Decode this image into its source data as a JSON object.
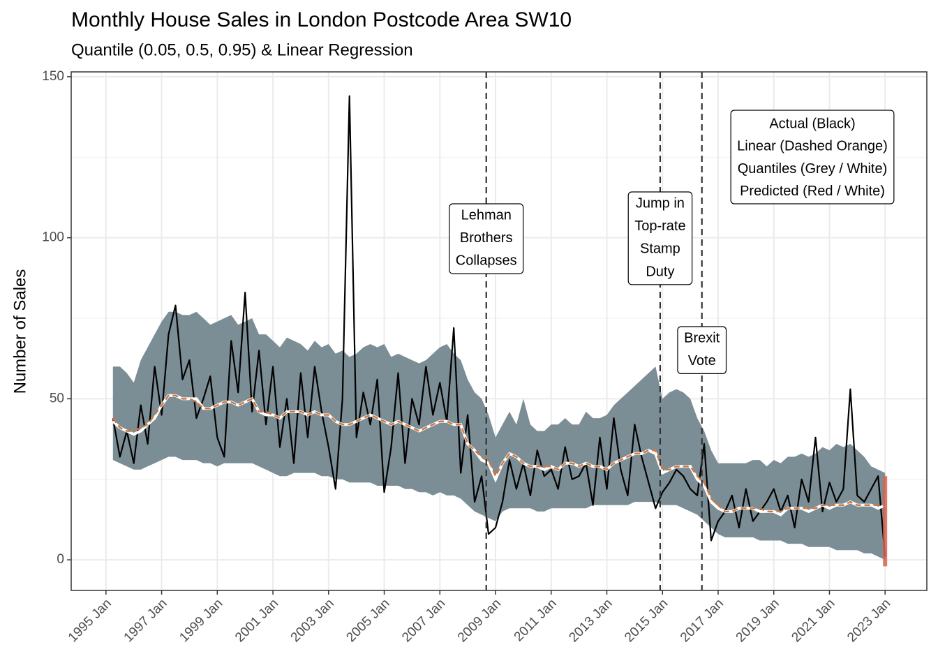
{
  "chart_data": {
    "type": "line",
    "title": "Monthly House Sales in London Postcode Area SW10",
    "subtitle": "Quantile (0.05, 0.5, 0.95) & Linear Regression",
    "y_label": "Number of Sales",
    "x": [
      "1995-04",
      "1995-07",
      "1995-10",
      "1996-01",
      "1996-04",
      "1996-07",
      "1996-10",
      "1997-01",
      "1997-04",
      "1997-07",
      "1997-10",
      "1998-01",
      "1998-04",
      "1998-07",
      "1998-10",
      "1999-01",
      "1999-04",
      "1999-07",
      "1999-10",
      "2000-01",
      "2000-04",
      "2000-07",
      "2000-10",
      "2001-01",
      "2001-04",
      "2001-07",
      "2001-10",
      "2002-01",
      "2002-04",
      "2002-07",
      "2002-10",
      "2003-01",
      "2003-04",
      "2003-07",
      "2003-10",
      "2004-01",
      "2004-04",
      "2004-07",
      "2004-10",
      "2005-01",
      "2005-04",
      "2005-07",
      "2005-10",
      "2006-01",
      "2006-04",
      "2006-07",
      "2006-10",
      "2007-01",
      "2007-04",
      "2007-07",
      "2007-10",
      "2008-01",
      "2008-04",
      "2008-07",
      "2008-10",
      "2009-01",
      "2009-04",
      "2009-07",
      "2009-10",
      "2010-01",
      "2010-04",
      "2010-07",
      "2010-10",
      "2011-01",
      "2011-04",
      "2011-07",
      "2011-10",
      "2012-01",
      "2012-04",
      "2012-07",
      "2012-10",
      "2013-01",
      "2013-04",
      "2013-07",
      "2013-10",
      "2014-01",
      "2014-04",
      "2014-07",
      "2014-10",
      "2015-01",
      "2015-04",
      "2015-07",
      "2015-10",
      "2016-01",
      "2016-04",
      "2016-07",
      "2016-10",
      "2017-01",
      "2017-04",
      "2017-07",
      "2017-10",
      "2018-01",
      "2018-04",
      "2018-07",
      "2018-10",
      "2019-01",
      "2019-04",
      "2019-07",
      "2019-10",
      "2020-01",
      "2020-04",
      "2020-07",
      "2020-10",
      "2021-01",
      "2021-04",
      "2021-07",
      "2021-10",
      "2022-01",
      "2022-04",
      "2022-07",
      "2022-10",
      "2023-01"
    ],
    "quantiles": {
      "name": "Quantiles (Grey / White)",
      "color": "#7b8d95",
      "median_color": "#ffffff",
      "upper": [
        60,
        60,
        58,
        55,
        62,
        66,
        70,
        74,
        77,
        77,
        76,
        76,
        77,
        75,
        73,
        74,
        75,
        76,
        73,
        74,
        75,
        70,
        70,
        68,
        66,
        69,
        68,
        67,
        65,
        68,
        66,
        67,
        64,
        65,
        63,
        64,
        66,
        67,
        66,
        67,
        63,
        64,
        63,
        62,
        61,
        62,
        64,
        66,
        67,
        64,
        62,
        56,
        52,
        50,
        45,
        38,
        42,
        46,
        42,
        50,
        42,
        40,
        40,
        42,
        42,
        44,
        42,
        42,
        46,
        44,
        44,
        45,
        48,
        50,
        52,
        54,
        56,
        58,
        60,
        50,
        52,
        53,
        52,
        50,
        44,
        40,
        34,
        30,
        30,
        30,
        30,
        30,
        31,
        31,
        29,
        31,
        30,
        32,
        32,
        33,
        32,
        33,
        35,
        34,
        36,
        35,
        36,
        34,
        32,
        29,
        28,
        27
      ],
      "median": [
        43,
        41,
        40,
        39,
        40,
        42,
        44,
        48,
        51,
        51,
        50,
        50,
        50,
        47,
        47,
        48,
        49,
        49,
        48,
        49,
        50,
        46,
        45,
        45,
        44,
        46,
        46,
        46,
        45,
        46,
        45,
        45,
        43,
        42,
        42,
        43,
        44,
        45,
        44,
        43,
        42,
        43,
        42,
        41,
        40,
        41,
        42,
        43,
        43,
        42,
        42,
        36,
        34,
        31,
        30,
        25,
        30,
        33,
        32,
        30,
        29,
        29,
        28,
        29,
        28,
        30,
        30,
        29,
        30,
        29,
        29,
        28,
        30,
        31,
        32,
        33,
        33,
        34,
        33,
        27,
        28,
        29,
        29,
        29,
        25,
        23,
        18,
        16,
        15,
        15,
        16,
        16,
        16,
        15,
        15,
        15,
        14,
        16,
        16,
        16,
        15,
        16,
        17,
        16,
        17,
        17,
        18,
        17,
        17,
        17,
        16,
        17
      ],
      "lower": [
        31,
        30,
        29,
        28,
        28,
        29,
        30,
        31,
        32,
        32,
        31,
        31,
        31,
        30,
        30,
        29,
        30,
        30,
        30,
        30,
        30,
        29,
        28,
        27,
        26,
        26,
        27,
        27,
        27,
        27,
        26,
        26,
        25,
        25,
        24,
        24,
        24,
        24,
        23,
        23,
        23,
        23,
        22,
        22,
        21,
        21,
        20,
        21,
        20,
        20,
        19,
        17,
        15,
        14,
        13,
        12,
        15,
        16,
        16,
        16,
        16,
        15,
        15,
        16,
        16,
        16,
        16,
        16,
        16,
        17,
        17,
        17,
        17,
        17,
        17,
        18,
        18,
        18,
        18,
        17,
        17,
        17,
        16,
        15,
        14,
        12,
        10,
        8,
        7,
        7,
        7,
        7,
        7,
        6,
        6,
        6,
        6,
        5,
        5,
        5,
        4,
        4,
        4,
        4,
        3,
        3,
        3,
        3,
        2,
        2,
        1,
        0
      ]
    },
    "series": [
      {
        "name": "Actual (Black)",
        "color": "#000000",
        "dashed": false,
        "values": [
          44,
          32,
          40,
          30,
          48,
          36,
          60,
          45,
          70,
          79,
          56,
          62,
          44,
          50,
          57,
          38,
          32,
          68,
          52,
          83,
          46,
          65,
          42,
          60,
          35,
          50,
          30,
          58,
          38,
          60,
          46,
          35,
          22,
          50,
          144,
          38,
          52,
          42,
          56,
          21,
          35,
          58,
          30,
          50,
          42,
          60,
          45,
          55,
          43,
          72,
          27,
          45,
          18,
          26,
          8,
          10,
          18,
          31,
          22,
          30,
          20,
          34,
          26,
          28,
          22,
          35,
          25,
          26,
          30,
          17,
          38,
          22,
          44,
          28,
          20,
          42,
          32,
          24,
          16,
          21,
          24,
          28,
          26,
          22,
          20,
          36,
          6,
          12,
          15,
          20,
          10,
          22,
          12,
          15,
          18,
          22,
          15,
          20,
          10,
          25,
          18,
          38,
          15,
          24,
          18,
          22,
          53,
          20,
          18,
          22,
          26,
          1
        ]
      },
      {
        "name": "Linear (Dashed Orange)",
        "color": "#d2773f",
        "dashed": true,
        "values": [
          44,
          41,
          40,
          40,
          41,
          42,
          45,
          48,
          51,
          51,
          50,
          50,
          49,
          47,
          47,
          48,
          49,
          49,
          48,
          49,
          50,
          46,
          46,
          45,
          44,
          46,
          46,
          46,
          45,
          46,
          45,
          45,
          43,
          42,
          42,
          43,
          44,
          45,
          44,
          43,
          42,
          43,
          42,
          41,
          40,
          41,
          42,
          43,
          43,
          42,
          42,
          36,
          34,
          32,
          31,
          26,
          30,
          33,
          32,
          30,
          29,
          29,
          29,
          29,
          28,
          30,
          30,
          29,
          30,
          29,
          29,
          28,
          30,
          31,
          32,
          33,
          33,
          34,
          34,
          28,
          28,
          29,
          29,
          29,
          26,
          24,
          19,
          17,
          15,
          15,
          16,
          16,
          16,
          16,
          15,
          15,
          15,
          16,
          16,
          16,
          16,
          16,
          17,
          17,
          17,
          17,
          18,
          17,
          17,
          17,
          17,
          17
        ]
      }
    ],
    "prediction": {
      "name": "Predicted (Red / White)",
      "color": "#d9604c",
      "x": [
        "2023-01"
      ],
      "lower": [
        -2
      ],
      "upper": [
        26
      ]
    },
    "events": [
      {
        "x": "2008-09",
        "label": [
          "Lehman",
          "Brothers",
          "Collapses"
        ]
      },
      {
        "x": "2014-12",
        "label": [
          "Jump in",
          "Top-rate",
          "Stamp",
          "Duty"
        ]
      },
      {
        "x": "2016-06",
        "label": [
          "Brexit",
          "Vote"
        ]
      }
    ],
    "xlim": [
      "1993-10",
      "2024-07"
    ],
    "xticks": [
      {
        "value": "1995-01",
        "label": "1995 Jan"
      },
      {
        "value": "1997-01",
        "label": "1997 Jan"
      },
      {
        "value": "1999-01",
        "label": "1999 Jan"
      },
      {
        "value": "2001-01",
        "label": "2001 Jan"
      },
      {
        "value": "2003-01",
        "label": "2003 Jan"
      },
      {
        "value": "2005-01",
        "label": "2005 Jan"
      },
      {
        "value": "2007-01",
        "label": "2007 Jan"
      },
      {
        "value": "2009-01",
        "label": "2009 Jan"
      },
      {
        "value": "2011-01",
        "label": "2011 Jan"
      },
      {
        "value": "2013-01",
        "label": "2013 Jan"
      },
      {
        "value": "2015-01",
        "label": "2015 Jan"
      },
      {
        "value": "2017-01",
        "label": "2017 Jan"
      },
      {
        "value": "2019-01",
        "label": "2019 Jan"
      },
      {
        "value": "2021-01",
        "label": "2021 Jan"
      },
      {
        "value": "2023-01",
        "label": "2023 Jan"
      }
    ],
    "ylim": [
      -9.5,
      151.5
    ],
    "yticks": [
      0,
      50,
      100,
      150
    ],
    "y_minor_ticks": [
      25,
      75,
      125
    ],
    "grid": true
  }
}
